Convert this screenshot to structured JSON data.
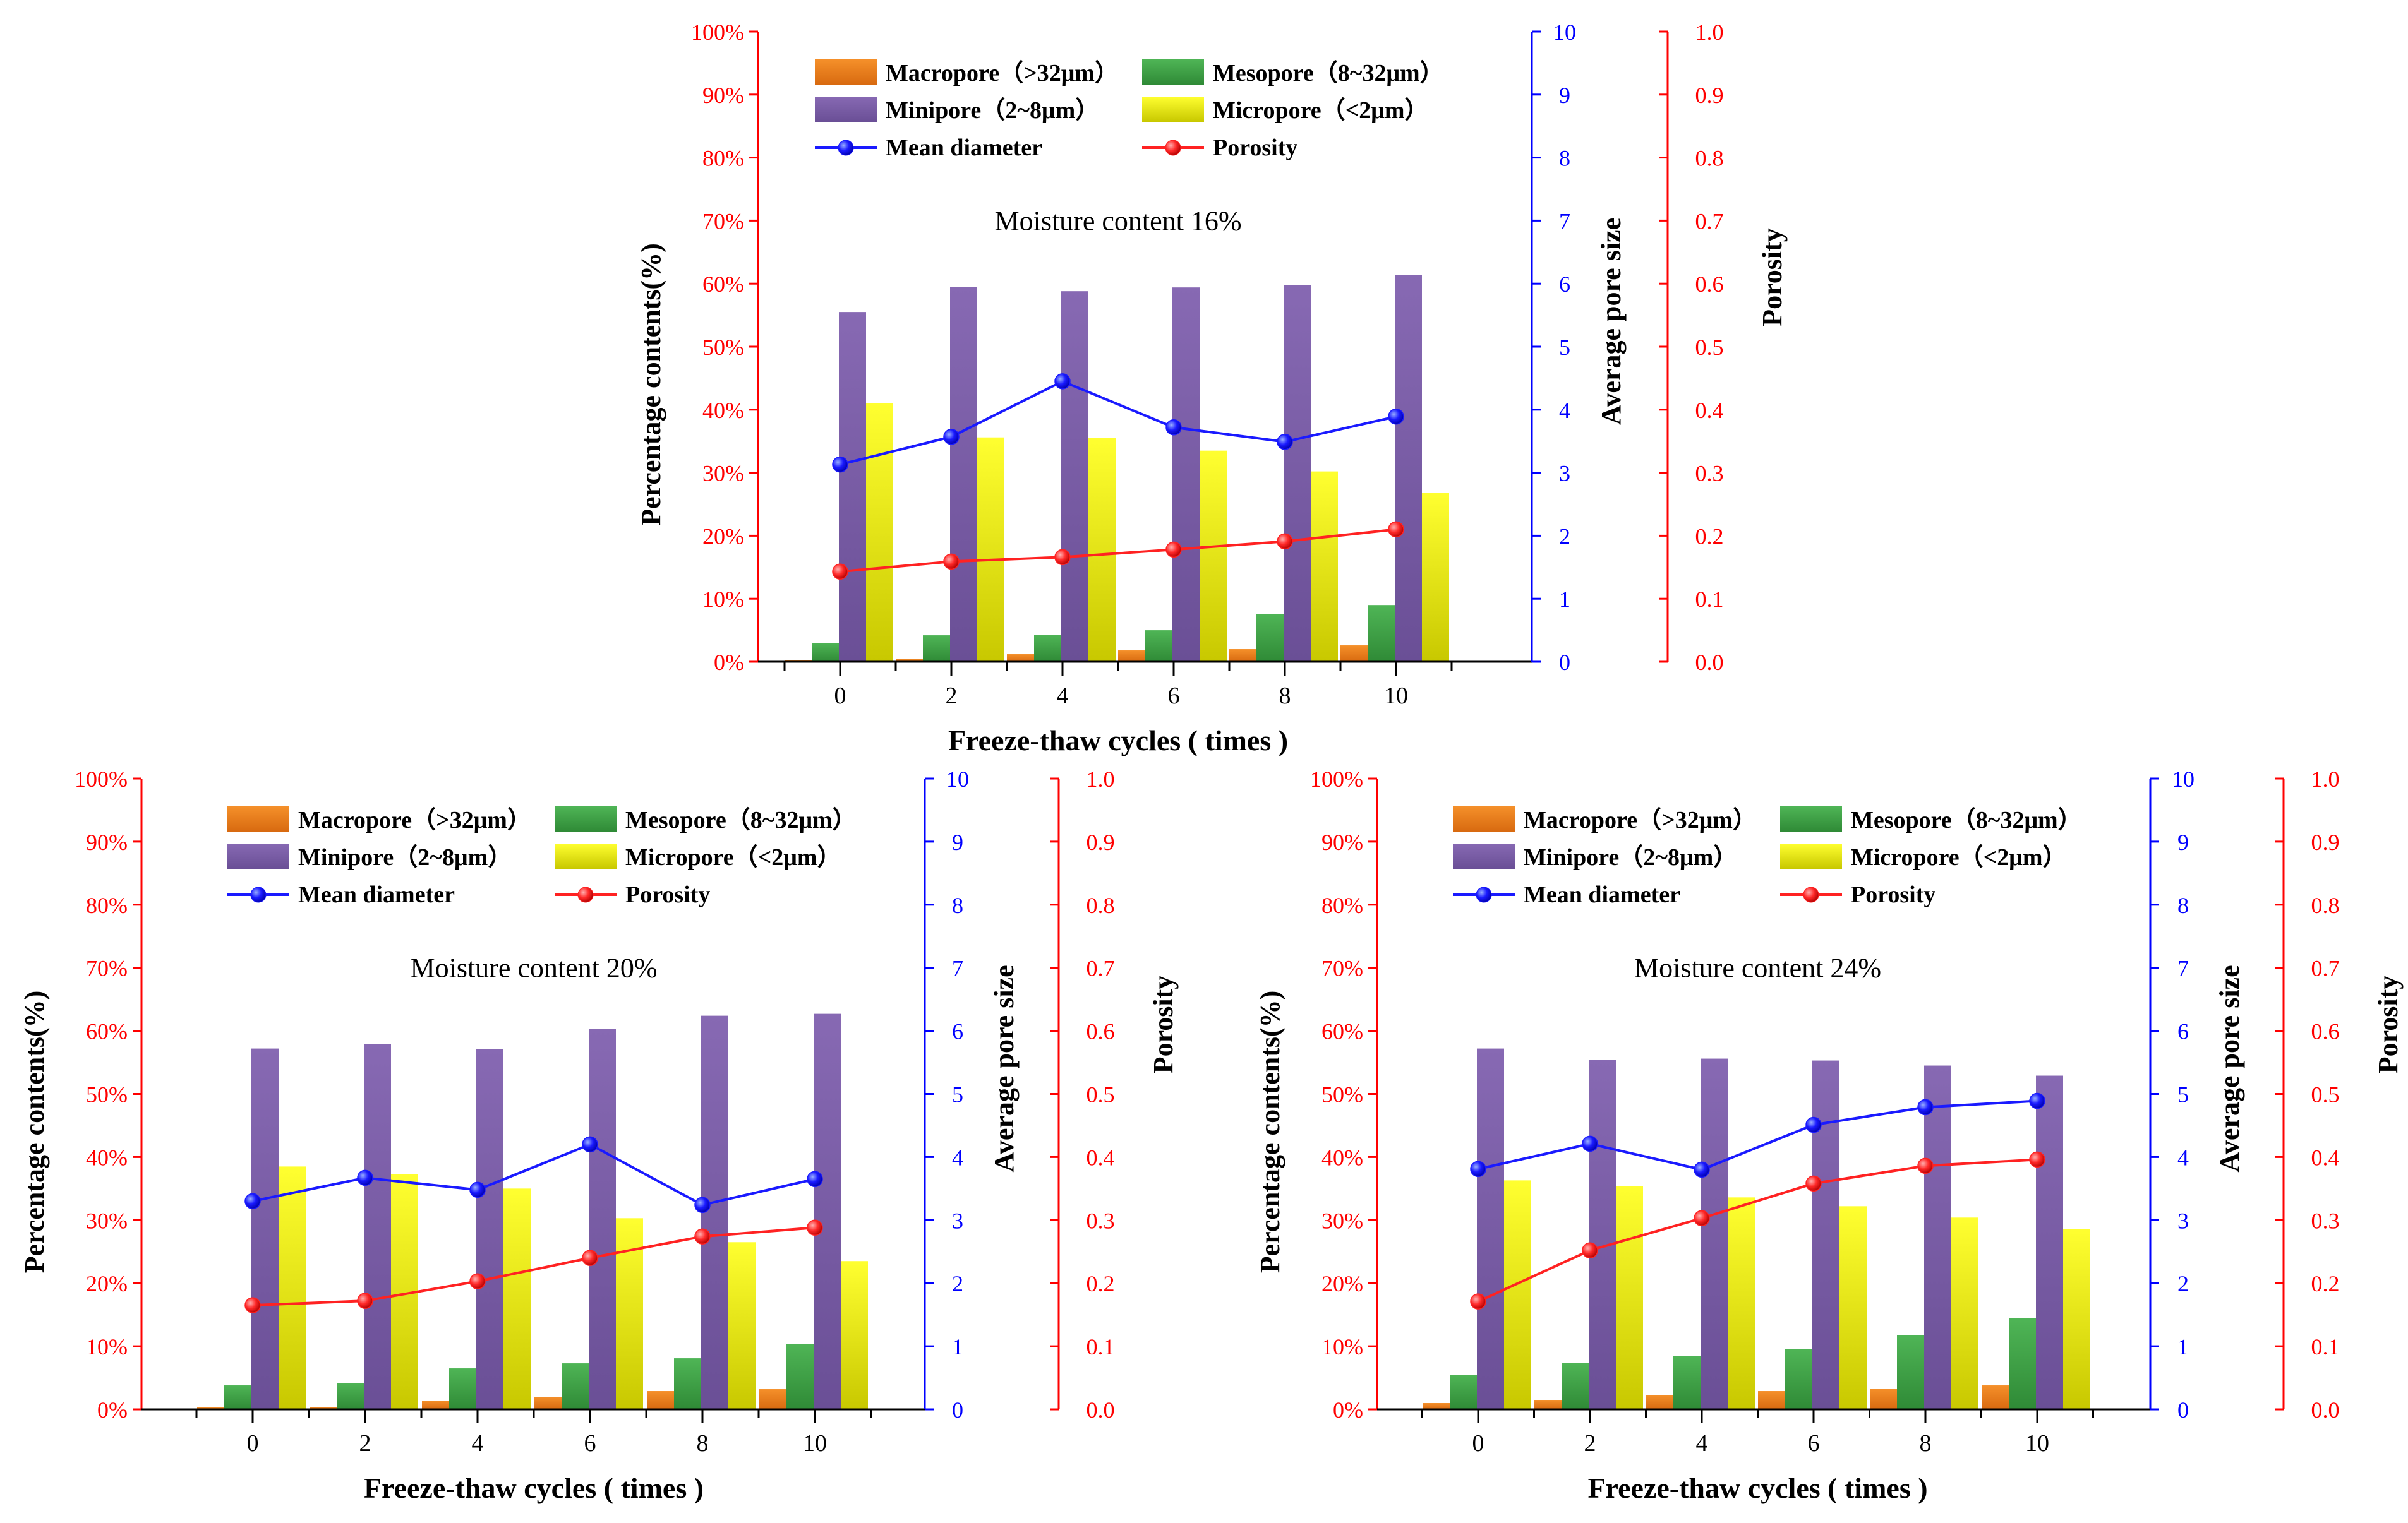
{
  "shared": {
    "categories": [
      "0",
      "2",
      "4",
      "6",
      "8",
      "10"
    ],
    "xlabel": "Freeze-thaw cycles ( times )",
    "ylabel_left": "Percentage contents(%)",
    "ylabel_mid": "Average pore size",
    "ylabel_right": "Porosity",
    "left_ticks": [
      "0%",
      "10%",
      "20%",
      "30%",
      "40%",
      "50%",
      "60%",
      "70%",
      "80%",
      "90%",
      "100%"
    ],
    "mid_ticks": [
      "0",
      "1",
      "2",
      "3",
      "4",
      "5",
      "6",
      "7",
      "8",
      "9",
      "10"
    ],
    "right_ticks": [
      "0.0",
      "0.1",
      "0.2",
      "0.3",
      "0.4",
      "0.5",
      "0.6",
      "0.7",
      "0.8",
      "0.9",
      "1.0"
    ],
    "legend": {
      "macropore": "Macropore（>32μm）",
      "mesopore": "Mesopore（8~32μm）",
      "minipore": "Minipore（2~8μm）",
      "micropore": "Micropore（<2μm）",
      "mean_diameter": "Mean diameter",
      "porosity": "Porosity"
    },
    "colors": {
      "macropore": "#ee7a1a",
      "mesopore": "#3e9e45",
      "minipore": "#7b5ea5",
      "micropore": "#f2f000",
      "mean_diameter": "#1a1aff",
      "porosity": "#ff2222",
      "left_axis": "#ff0000",
      "mid_axis": "#0000ff",
      "right_axis": "#ff0000"
    }
  },
  "chart_data": [
    {
      "type": "bar",
      "title": "Moisture content 16%",
      "categories": [
        "0",
        "2",
        "4",
        "6",
        "8",
        "10"
      ],
      "xlabel": "Freeze-thaw cycles ( times )",
      "ylabel": "Percentage contents(%)",
      "ylim": [
        0,
        100
      ],
      "y2label": "Average pore size",
      "y2lim": [
        0,
        10
      ],
      "y3label": "Porosity",
      "y3lim": [
        0,
        1.0
      ],
      "series": [
        {
          "name": "Macropore（>32μm）",
          "axis": "left",
          "values": [
            0.3,
            0.5,
            1.2,
            1.8,
            2.0,
            2.6
          ]
        },
        {
          "name": "Mesopore（8~32μm）",
          "axis": "left",
          "values": [
            3.0,
            4.2,
            4.3,
            5.0,
            7.6,
            9.0
          ]
        },
        {
          "name": "Minipore（2~8μm）",
          "axis": "left",
          "values": [
            55.5,
            59.5,
            58.8,
            59.4,
            59.8,
            61.4
          ]
        },
        {
          "name": "Micropore（<2μm）",
          "axis": "left",
          "values": [
            41.0,
            35.6,
            35.5,
            33.5,
            30.2,
            26.8
          ]
        },
        {
          "name": "Mean diameter",
          "axis": "mid",
          "values": [
            3.13,
            3.57,
            4.45,
            3.72,
            3.49,
            3.89
          ]
        },
        {
          "name": "Porosity",
          "axis": "right",
          "values": [
            0.143,
            0.159,
            0.166,
            0.178,
            0.191,
            0.21
          ]
        }
      ]
    },
    {
      "type": "bar",
      "title": "Moisture content 20%",
      "categories": [
        "0",
        "2",
        "4",
        "6",
        "8",
        "10"
      ],
      "xlabel": "Freeze-thaw cycles ( times )",
      "ylabel": "Percentage contents(%)",
      "ylim": [
        0,
        100
      ],
      "y2label": "Average pore size",
      "y2lim": [
        0,
        10
      ],
      "y3label": "Porosity",
      "y3lim": [
        0,
        1.0
      ],
      "series": [
        {
          "name": "Macropore（>32μm）",
          "axis": "left",
          "values": [
            0.3,
            0.4,
            1.4,
            2.0,
            2.9,
            3.2
          ]
        },
        {
          "name": "Mesopore（8~32μm）",
          "axis": "left",
          "values": [
            3.8,
            4.2,
            6.5,
            7.3,
            8.1,
            10.4
          ]
        },
        {
          "name": "Minipore（2~8μm）",
          "axis": "left",
          "values": [
            57.2,
            57.9,
            57.1,
            60.3,
            62.4,
            62.7
          ]
        },
        {
          "name": "Micropore（<2μm）",
          "axis": "left",
          "values": [
            38.5,
            37.3,
            35.0,
            30.3,
            26.5,
            23.5
          ]
        },
        {
          "name": "Mean diameter",
          "axis": "mid",
          "values": [
            3.3,
            3.67,
            3.48,
            4.2,
            3.24,
            3.65
          ]
        },
        {
          "name": "Porosity",
          "axis": "right",
          "values": [
            0.165,
            0.172,
            0.203,
            0.24,
            0.274,
            0.288
          ]
        }
      ]
    },
    {
      "type": "bar",
      "title": "Moisture content 24%",
      "categories": [
        "0",
        "2",
        "4",
        "6",
        "8",
        "10"
      ],
      "xlabel": "Freeze-thaw cycles ( times )",
      "ylabel": "Percentage contents(%)",
      "ylim": [
        0,
        100
      ],
      "y2label": "Average pore size",
      "y2lim": [
        0,
        10
      ],
      "y3label": "Porosity",
      "y3lim": [
        0,
        1.0
      ],
      "series": [
        {
          "name": "Macropore（>32μm）",
          "axis": "left",
          "values": [
            1.0,
            1.5,
            2.3,
            2.9,
            3.3,
            3.8
          ]
        },
        {
          "name": "Mesopore（8~32μm）",
          "axis": "left",
          "values": [
            5.5,
            7.4,
            8.5,
            9.6,
            11.8,
            14.5
          ]
        },
        {
          "name": "Minipore（2~8μm）",
          "axis": "left",
          "values": [
            57.2,
            55.4,
            55.6,
            55.3,
            54.5,
            52.9
          ]
        },
        {
          "name": "Micropore（<2μm）",
          "axis": "left",
          "values": [
            36.3,
            35.4,
            33.6,
            32.2,
            30.4,
            28.6
          ]
        },
        {
          "name": "Mean diameter",
          "axis": "mid",
          "values": [
            3.81,
            4.21,
            3.8,
            4.51,
            4.79,
            4.89
          ]
        },
        {
          "name": "Porosity",
          "axis": "right",
          "values": [
            0.171,
            0.252,
            0.303,
            0.358,
            0.386,
            0.396
          ]
        }
      ]
    }
  ]
}
